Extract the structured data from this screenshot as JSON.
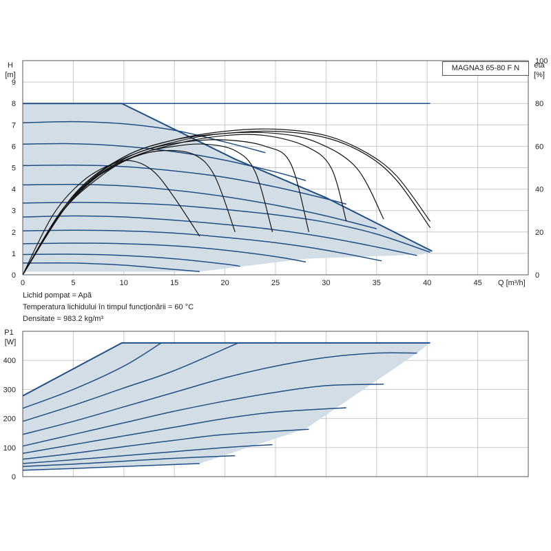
{
  "model": "MAGNA3 65-80 F N",
  "info": {
    "line1": "Lichid pompat = Apă",
    "line2": "Temperatura lichidului în timpul funcționării = 60 °C",
    "line3": "Densitate = 983.2 kg/m³"
  },
  "colors": {
    "fill": "#d3dde6",
    "curve": "#1f4e85",
    "efficiency": "#111111",
    "grid": "#c8c8c8",
    "axis": "#555555"
  },
  "chart_data": [
    {
      "type": "line",
      "name": "head-efficiency",
      "xlabel": "Q [m³/h]",
      "ylabel_line1": "H",
      "ylabel_line2": "[m]",
      "y2label_line1": "eta",
      "y2label_line2": "[%]",
      "xlim": [
        0,
        50
      ],
      "ylim": [
        0,
        10
      ],
      "y2lim": [
        0,
        100
      ],
      "xticks": [
        0,
        5,
        10,
        15,
        20,
        25,
        30,
        35,
        40,
        45
      ],
      "yticks": [
        0,
        1,
        2,
        3,
        4,
        5,
        6,
        7,
        8,
        9
      ],
      "y2ticks": [
        0,
        20,
        40,
        60,
        80,
        100
      ],
      "grid": true,
      "envelope": [
        [
          0,
          8.0
        ],
        [
          9.8,
          8.0
        ],
        [
          21,
          5.4
        ],
        [
          30,
          3.6
        ],
        [
          40.5,
          1.1
        ],
        [
          39.5,
          0.95
        ],
        [
          28,
          0.75
        ],
        [
          17.5,
          0.15
        ],
        [
          0,
          0.15
        ]
      ],
      "head_curves": [
        {
          "x": [
            0,
            10,
            20,
            30,
            40.3
          ],
          "y": [
            8.0,
            8.0,
            8.0,
            8.0,
            8.0
          ]
        },
        {
          "x": [
            0,
            5,
            10,
            15,
            20,
            24
          ],
          "y": [
            7.1,
            7.15,
            7.05,
            6.75,
            6.2,
            5.7
          ]
        },
        {
          "x": [
            0,
            5,
            10,
            15,
            20,
            25,
            28
          ],
          "y": [
            6.1,
            6.12,
            6.0,
            5.75,
            5.35,
            4.8,
            4.4
          ]
        },
        {
          "x": [
            0,
            5,
            10,
            15,
            20,
            25,
            30,
            32
          ],
          "y": [
            5.1,
            5.12,
            5.05,
            4.85,
            4.55,
            4.1,
            3.55,
            3.3
          ]
        },
        {
          "x": [
            0,
            5,
            10,
            15,
            20,
            25,
            30,
            35
          ],
          "y": [
            4.2,
            4.22,
            4.15,
            3.95,
            3.65,
            3.25,
            2.75,
            2.15
          ]
        },
        {
          "x": [
            0,
            5,
            10,
            15,
            20,
            25,
            30,
            35,
            40.3
          ],
          "y": [
            3.35,
            3.38,
            3.35,
            3.25,
            3.05,
            2.8,
            2.45,
            1.9,
            1.05
          ]
        },
        {
          "x": [
            0,
            5,
            10,
            15,
            20,
            25,
            30,
            35,
            39
          ],
          "y": [
            2.7,
            2.75,
            2.7,
            2.55,
            2.35,
            2.1,
            1.75,
            1.3,
            0.9
          ]
        },
        {
          "x": [
            0,
            5,
            10,
            15,
            20,
            25,
            30,
            35.5
          ],
          "y": [
            2.05,
            2.08,
            2.05,
            1.95,
            1.75,
            1.5,
            1.15,
            0.65
          ]
        },
        {
          "x": [
            0,
            5,
            10,
            15,
            20,
            25,
            28
          ],
          "y": [
            1.45,
            1.48,
            1.45,
            1.35,
            1.15,
            0.85,
            0.6
          ]
        },
        {
          "x": [
            0,
            5,
            10,
            15,
            20,
            21.5
          ],
          "y": [
            0.95,
            0.96,
            0.9,
            0.75,
            0.5,
            0.4
          ]
        },
        {
          "x": [
            0,
            5,
            10,
            15,
            17.5
          ],
          "y": [
            0.55,
            0.55,
            0.45,
            0.25,
            0.15
          ]
        }
      ],
      "efficiency_curves": [
        {
          "x": [
            0,
            3,
            6,
            9,
            11,
            13,
            15,
            17.5
          ],
          "y": [
            0,
            28,
            44,
            52,
            53,
            48,
            36,
            18
          ]
        },
        {
          "x": [
            0,
            4,
            8,
            11,
            14,
            17,
            19,
            21
          ],
          "y": [
            0,
            30,
            47,
            55,
            58,
            56,
            46,
            20
          ]
        },
        {
          "x": [
            0,
            4,
            8,
            12,
            15,
            18,
            21,
            23,
            24.7
          ],
          "y": [
            0,
            30,
            48,
            57,
            60,
            61,
            58,
            48,
            20
          ]
        },
        {
          "x": [
            0,
            4,
            8,
            12,
            16,
            20,
            24,
            26.5,
            28.3
          ],
          "y": [
            0,
            31,
            49,
            58,
            62,
            63,
            60,
            52,
            20
          ]
        },
        {
          "x": [
            0,
            5,
            10,
            15,
            20,
            24,
            28,
            30.5,
            32
          ],
          "y": [
            0,
            36,
            53,
            61,
            65,
            65,
            60,
            50,
            25
          ]
        },
        {
          "x": [
            0,
            5,
            10,
            15,
            20,
            25,
            29,
            33,
            35.7
          ],
          "y": [
            0,
            36,
            54,
            62,
            66,
            66,
            62,
            50,
            26
          ]
        },
        {
          "x": [
            0,
            5,
            10,
            15,
            20,
            25,
            30,
            34,
            37,
            40.3
          ],
          "y": [
            0,
            37,
            55,
            63,
            66,
            67,
            64,
            56,
            44,
            22
          ]
        },
        {
          "x": [
            0,
            5,
            10,
            15,
            20,
            25,
            30,
            34,
            37,
            40.3
          ],
          "y": [
            0,
            37,
            55,
            63,
            67,
            68,
            65,
            57,
            46,
            25
          ]
        }
      ]
    },
    {
      "type": "line",
      "name": "power",
      "ylabel_line1": "P1",
      "ylabel_line2": "[W]",
      "xlim": [
        0,
        50
      ],
      "ylim": [
        0,
        500
      ],
      "xticks": [
        0,
        5,
        10,
        15,
        20,
        25,
        30,
        35,
        40,
        45
      ],
      "yticks": [
        0,
        100,
        200,
        300,
        400
      ],
      "grid": true,
      "envelope": [
        [
          0,
          278
        ],
        [
          9.8,
          460
        ],
        [
          40.3,
          460
        ],
        [
          39,
          425
        ],
        [
          28,
          165
        ],
        [
          17.5,
          45
        ],
        [
          0,
          20
        ],
        [
          0,
          278
        ]
      ],
      "power_curves": [
        {
          "x": [
            0,
            9.8,
            40.3
          ],
          "y": [
            278,
            460,
            460
          ]
        },
        {
          "x": [
            0,
            5,
            10,
            13.7
          ],
          "y": [
            235,
            300,
            380,
            460
          ]
        },
        {
          "x": [
            0,
            5,
            10,
            15,
            21.3
          ],
          "y": [
            190,
            245,
            305,
            365,
            460
          ]
        },
        {
          "x": [
            0,
            5,
            10,
            15,
            20,
            25,
            30,
            35,
            39
          ],
          "y": [
            145,
            190,
            240,
            290,
            340,
            380,
            410,
            425,
            425
          ]
        },
        {
          "x": [
            0,
            5,
            10,
            15,
            20,
            25,
            30,
            35.7
          ],
          "y": [
            105,
            145,
            185,
            225,
            260,
            290,
            313,
            318
          ]
        },
        {
          "x": [
            0,
            5,
            10,
            15,
            20,
            25,
            32
          ],
          "y": [
            80,
            110,
            140,
            170,
            200,
            222,
            237
          ]
        },
        {
          "x": [
            0,
            5,
            10,
            15,
            20,
            28.3
          ],
          "y": [
            60,
            80,
            103,
            125,
            145,
            163
          ]
        },
        {
          "x": [
            0,
            5,
            10,
            15,
            20,
            24.7
          ],
          "y": [
            45,
            58,
            72,
            86,
            100,
            110
          ]
        },
        {
          "x": [
            0,
            5,
            10,
            15,
            21
          ],
          "y": [
            35,
            43,
            53,
            63,
            72
          ]
        },
        {
          "x": [
            0,
            5,
            10,
            17.5
          ],
          "y": [
            22,
            28,
            35,
            45
          ]
        }
      ]
    }
  ]
}
